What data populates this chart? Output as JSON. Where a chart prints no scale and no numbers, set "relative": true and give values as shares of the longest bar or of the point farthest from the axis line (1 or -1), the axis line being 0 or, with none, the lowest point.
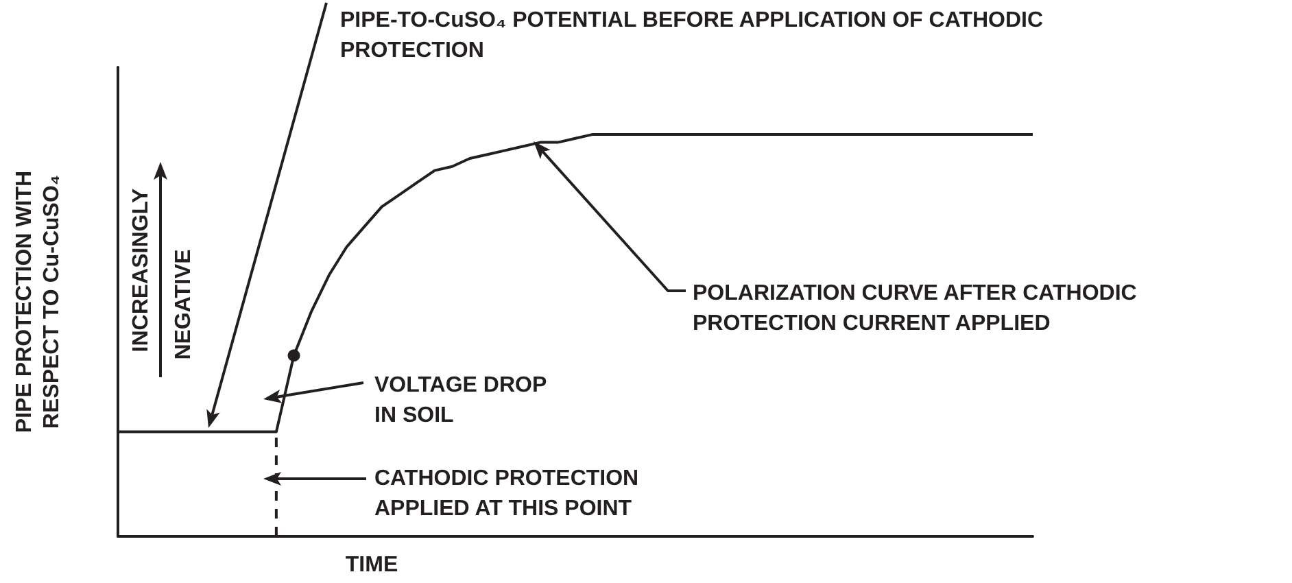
{
  "chart_data": {
    "type": "line",
    "relative": true,
    "categories": [
      null,
      null,
      null,
      null,
      null,
      null,
      null,
      null,
      null,
      null,
      null,
      null,
      null,
      null,
      null,
      null,
      null,
      null,
      null,
      null,
      null,
      null,
      null,
      null,
      null,
      null,
      null,
      null,
      null,
      null,
      null,
      null,
      null,
      null,
      null,
      null,
      null,
      null,
      null,
      null,
      null,
      null,
      null,
      null,
      null,
      null,
      null,
      null,
      null,
      null,
      null,
      null,
      null
    ],
    "series": [
      {
        "color": "#231f20",
        "marker": "none",
        "values": [
          0.26,
          0.26,
          0.26,
          0.26,
          0.26,
          0.26,
          0.26,
          0.26,
          0.26,
          0.26,
          0.45,
          0.56,
          0.65,
          0.72,
          0.77,
          0.82,
          0.85,
          0.88,
          0.91,
          0.92,
          0.94,
          0.95,
          0.96,
          0.97,
          0.98,
          0.98,
          0.99,
          1,
          1,
          1,
          1,
          1,
          1,
          1,
          1,
          1,
          1,
          1,
          1,
          1,
          1,
          1,
          1,
          1,
          1,
          1,
          1,
          1,
          1,
          1,
          1,
          1,
          1
        ]
      }
    ],
    "xlabel": "TIME",
    "ylabel": "PIPE PROTECTION WITH RESPECT TO Cu-CuSO₄",
    "annotations": [
      "PIPE-TO-CuSO₄ POTENTIAL BEFORE APPLICATION OF CATHODIC PROTECTION",
      "POLARIZATION CURVE AFTER CATHODIC PROTECTION CURRENT APPLIED",
      "VOLTAGE DROP IN SOIL",
      "CATHODIC PROTECTION APPLIED AT THIS POINT",
      "INCREASINGLY NEGATIVE"
    ]
  }
}
